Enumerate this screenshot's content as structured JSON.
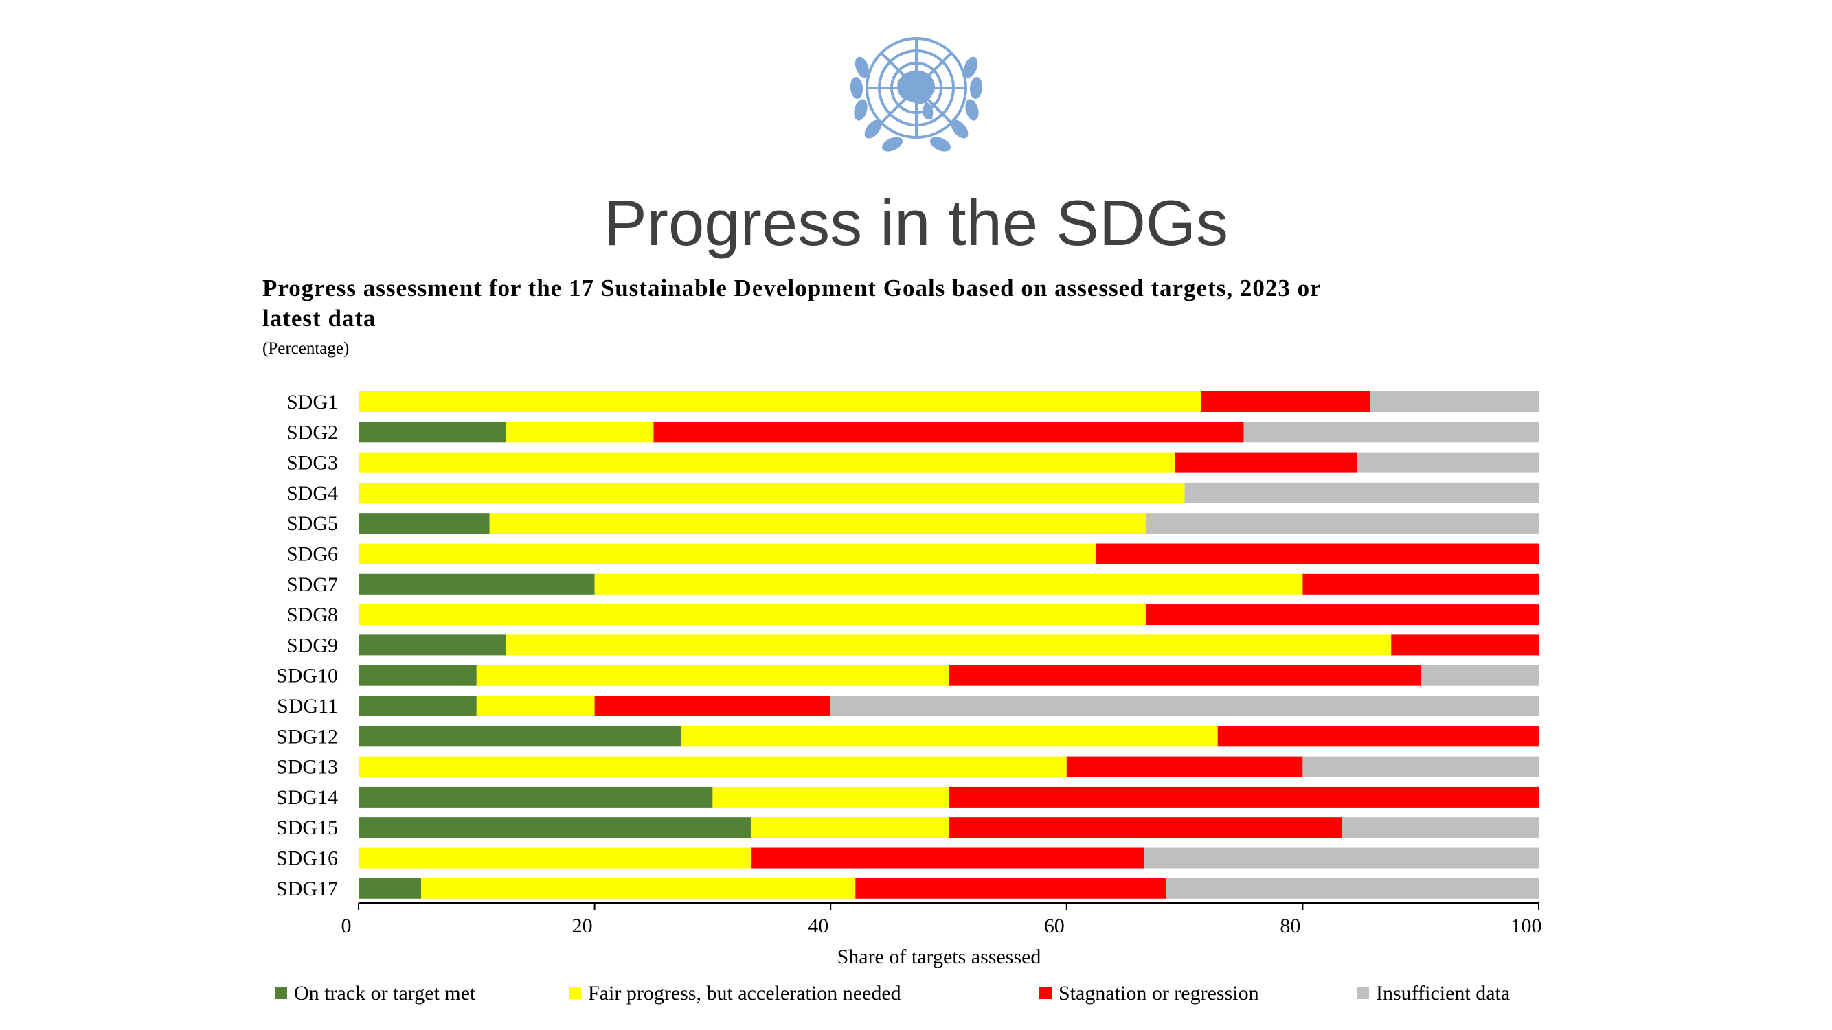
{
  "slide": {
    "title": "Progress in the SDGs",
    "logo": {
      "icon": "un-emblem-icon",
      "color": "#7ea6d6"
    }
  },
  "chart_data": {
    "type": "bar",
    "orientation": "horizontal",
    "stacked": true,
    "title": "Progress assessment for the 17 Sustainable Development Goals based on assessed targets, 2023 or latest data",
    "subtitle": "(Percentage)",
    "xlabel": "Share of targets assessed",
    "ylabel": "",
    "xlim": [
      0,
      100
    ],
    "xticks": [
      0,
      20,
      40,
      60,
      80,
      100
    ],
    "legend_position": "bottom",
    "categories": [
      "SDG1",
      "SDG2",
      "SDG3",
      "SDG4",
      "SDG5",
      "SDG6",
      "SDG7",
      "SDG8",
      "SDG9",
      "SDG10",
      "SDG11",
      "SDG12",
      "SDG13",
      "SDG14",
      "SDG15",
      "SDG16",
      "SDG17"
    ],
    "series": [
      {
        "name": "On track or target met",
        "color": "#538135",
        "values": [
          0,
          12.5,
          0,
          0,
          11.1,
          0,
          20,
          0,
          12.5,
          10,
          10,
          27.3,
          0,
          30,
          33.3,
          0,
          5.3
        ]
      },
      {
        "name": "Fair progress, but acceleration needed",
        "color": "#ffff00",
        "values": [
          71.4,
          12.5,
          69.2,
          70,
          55.6,
          62.5,
          60,
          66.7,
          75,
          40,
          10,
          45.5,
          60,
          20,
          16.7,
          33.3,
          36.8
        ]
      },
      {
        "name": "Stagnation or regression",
        "color": "#ff0000",
        "values": [
          14.3,
          50,
          15.4,
          0,
          0,
          37.5,
          20,
          33.3,
          12.5,
          40,
          20,
          27.2,
          20,
          50,
          33.3,
          33.3,
          26.3
        ]
      },
      {
        "name": "Insufficient data",
        "color": "#bfbfbf",
        "values": [
          14.3,
          25,
          15.4,
          30,
          33.3,
          0,
          0,
          0,
          0,
          10,
          60,
          0,
          20,
          0,
          16.7,
          33.4,
          31.6
        ]
      }
    ]
  }
}
